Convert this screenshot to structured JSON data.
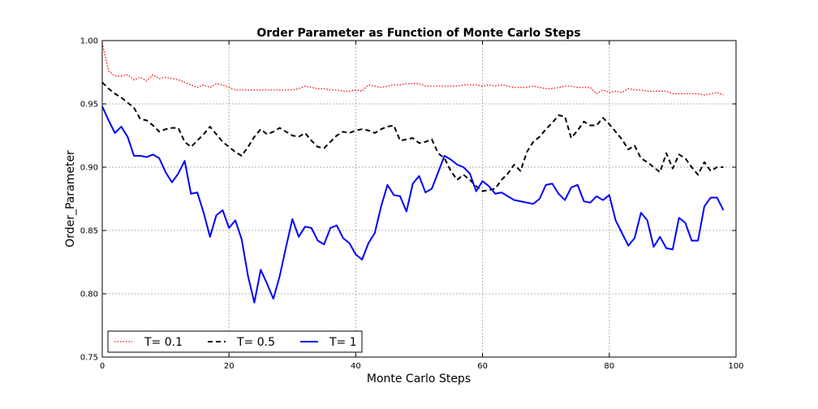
{
  "chart_data": {
    "type": "line",
    "title": "Order Parameter as Function of Monte Carlo Steps",
    "xlabel": "Monte Carlo Steps",
    "ylabel": "Order_Parameter",
    "xlim": [
      0,
      100
    ],
    "ylim": [
      0.75,
      1.0
    ],
    "xticks": [
      0,
      20,
      40,
      60,
      80,
      100
    ],
    "xtick_labels": [
      "0",
      "20",
      "40",
      "60",
      "80",
      "100"
    ],
    "yticks": [
      0.75,
      0.8,
      0.85,
      0.9,
      0.95,
      1.0
    ],
    "ytick_labels": [
      "0.75",
      "0.80",
      "0.85",
      "0.90",
      "0.95",
      "1.00"
    ],
    "grid": true,
    "legend_position": "lower-left",
    "series": [
      {
        "name": "T= 0.1",
        "color": "#ff0000",
        "style": "dotted",
        "x_start": 0,
        "x_step": 1,
        "values": [
          0.998,
          0.976,
          0.972,
          0.972,
          0.973,
          0.969,
          0.971,
          0.968,
          0.973,
          0.97,
          0.971,
          0.97,
          0.969,
          0.967,
          0.965,
          0.963,
          0.965,
          0.963,
          0.966,
          0.965,
          0.963,
          0.961,
          0.961,
          0.961,
          0.961,
          0.961,
          0.961,
          0.961,
          0.961,
          0.961,
          0.961,
          0.962,
          0.964,
          0.963,
          0.962,
          0.962,
          0.961,
          0.961,
          0.96,
          0.96,
          0.961,
          0.96,
          0.965,
          0.964,
          0.963,
          0.964,
          0.965,
          0.965,
          0.966,
          0.966,
          0.966,
          0.964,
          0.964,
          0.964,
          0.964,
          0.964,
          0.964,
          0.965,
          0.965,
          0.965,
          0.964,
          0.965,
          0.964,
          0.965,
          0.964,
          0.963,
          0.963,
          0.963,
          0.964,
          0.963,
          0.962,
          0.962,
          0.963,
          0.964,
          0.964,
          0.963,
          0.963,
          0.963,
          0.958,
          0.961,
          0.959,
          0.96,
          0.959,
          0.962,
          0.961,
          0.961,
          0.96,
          0.96,
          0.96,
          0.96,
          0.958,
          0.958,
          0.958,
          0.958,
          0.958,
          0.957,
          0.958,
          0.959,
          0.957
        ]
      },
      {
        "name": "T= 0.5",
        "color": "#000000",
        "style": "dashed",
        "x_start": 0,
        "x_step": 1,
        "values": [
          0.967,
          0.962,
          0.958,
          0.955,
          0.951,
          0.947,
          0.938,
          0.937,
          0.933,
          0.928,
          0.93,
          0.931,
          0.931,
          0.92,
          0.916,
          0.921,
          0.926,
          0.932,
          0.926,
          0.92,
          0.916,
          0.912,
          0.909,
          0.916,
          0.924,
          0.93,
          0.926,
          0.928,
          0.931,
          0.928,
          0.925,
          0.924,
          0.927,
          0.921,
          0.916,
          0.915,
          0.92,
          0.925,
          0.928,
          0.927,
          0.929,
          0.93,
          0.929,
          0.927,
          0.93,
          0.932,
          0.933,
          0.921,
          0.922,
          0.923,
          0.919,
          0.92,
          0.922,
          0.911,
          0.907,
          0.897,
          0.89,
          0.894,
          0.89,
          0.885,
          0.881,
          0.882,
          0.883,
          0.89,
          0.895,
          0.902,
          0.897,
          0.912,
          0.92,
          0.924,
          0.93,
          0.935,
          0.941,
          0.94,
          0.923,
          0.929,
          0.936,
          0.933,
          0.933,
          0.939,
          0.934,
          0.928,
          0.922,
          0.914,
          0.917,
          0.907,
          0.904,
          0.9,
          0.896,
          0.911,
          0.899,
          0.91,
          0.907,
          0.9,
          0.894,
          0.904,
          0.897,
          0.9,
          0.9
        ]
      },
      {
        "name": "T= 1",
        "color": "#0000ff",
        "style": "solid",
        "x_start": 0,
        "x_step": 1,
        "values": [
          0.948,
          0.937,
          0.927,
          0.932,
          0.924,
          0.909,
          0.909,
          0.908,
          0.91,
          0.907,
          0.896,
          0.888,
          0.895,
          0.905,
          0.879,
          0.88,
          0.864,
          0.845,
          0.862,
          0.866,
          0.852,
          0.858,
          0.843,
          0.814,
          0.793,
          0.819,
          0.808,
          0.796,
          0.814,
          0.837,
          0.859,
          0.845,
          0.853,
          0.852,
          0.842,
          0.839,
          0.852,
          0.854,
          0.844,
          0.84,
          0.831,
          0.827,
          0.84,
          0.848,
          0.869,
          0.886,
          0.878,
          0.877,
          0.865,
          0.887,
          0.893,
          0.88,
          0.883,
          0.896,
          0.909,
          0.906,
          0.902,
          0.9,
          0.895,
          0.881,
          0.889,
          0.885,
          0.879,
          0.88,
          0.877,
          0.874,
          0.873,
          0.872,
          0.871,
          0.875,
          0.886,
          0.887,
          0.879,
          0.874,
          0.884,
          0.886,
          0.873,
          0.872,
          0.877,
          0.874,
          0.878,
          0.858,
          0.848,
          0.838,
          0.844,
          0.864,
          0.858,
          0.837,
          0.845,
          0.836,
          0.835,
          0.86,
          0.856,
          0.842,
          0.842,
          0.869,
          0.876,
          0.876,
          0.866
        ]
      }
    ]
  }
}
